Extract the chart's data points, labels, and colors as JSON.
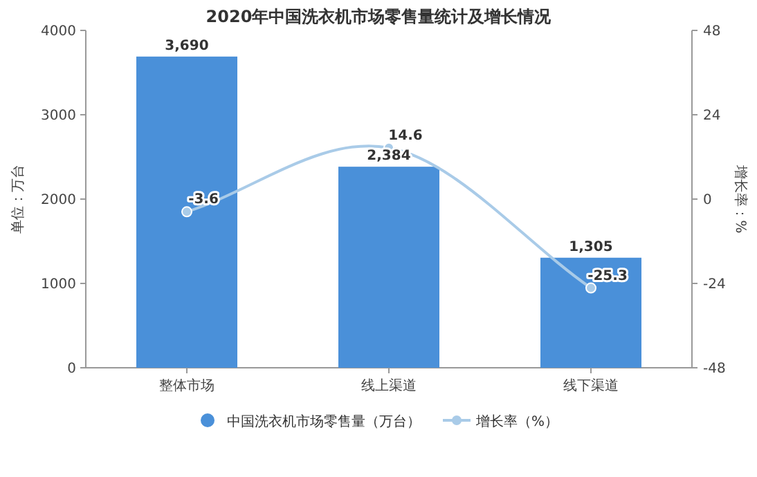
{
  "chart_data": {
    "type": "bar",
    "title": "2020年中国洗衣机市场零售量统计及增长情况",
    "ylabel": "单位：万台",
    "y2label": "增长率：%",
    "categories": [
      "整体市场",
      "线上渠道",
      "线下渠道"
    ],
    "series": [
      {
        "name": "中国洗衣机市场零售量（万台）",
        "color": "#4a90d9",
        "values": [
          3690,
          2384,
          1305
        ],
        "value_labels": [
          "3,690",
          "2,384",
          "1,305"
        ]
      },
      {
        "name": "增长率（%）",
        "type": "line",
        "axis": "y2",
        "color": "#a9cbe8",
        "marker": "circle",
        "values": [
          -3.6,
          14.6,
          -25.3
        ],
        "value_labels": [
          "-3.6",
          "14.6",
          "-25.3"
        ]
      }
    ],
    "ylim": [
      0,
      4000
    ],
    "yticks": [
      0,
      1000,
      2000,
      3000,
      4000
    ],
    "y2lim": [
      -48,
      48
    ],
    "y2ticks": [
      -48,
      -24,
      0,
      24,
      48
    ],
    "grid": false,
    "legend": "bottom"
  }
}
